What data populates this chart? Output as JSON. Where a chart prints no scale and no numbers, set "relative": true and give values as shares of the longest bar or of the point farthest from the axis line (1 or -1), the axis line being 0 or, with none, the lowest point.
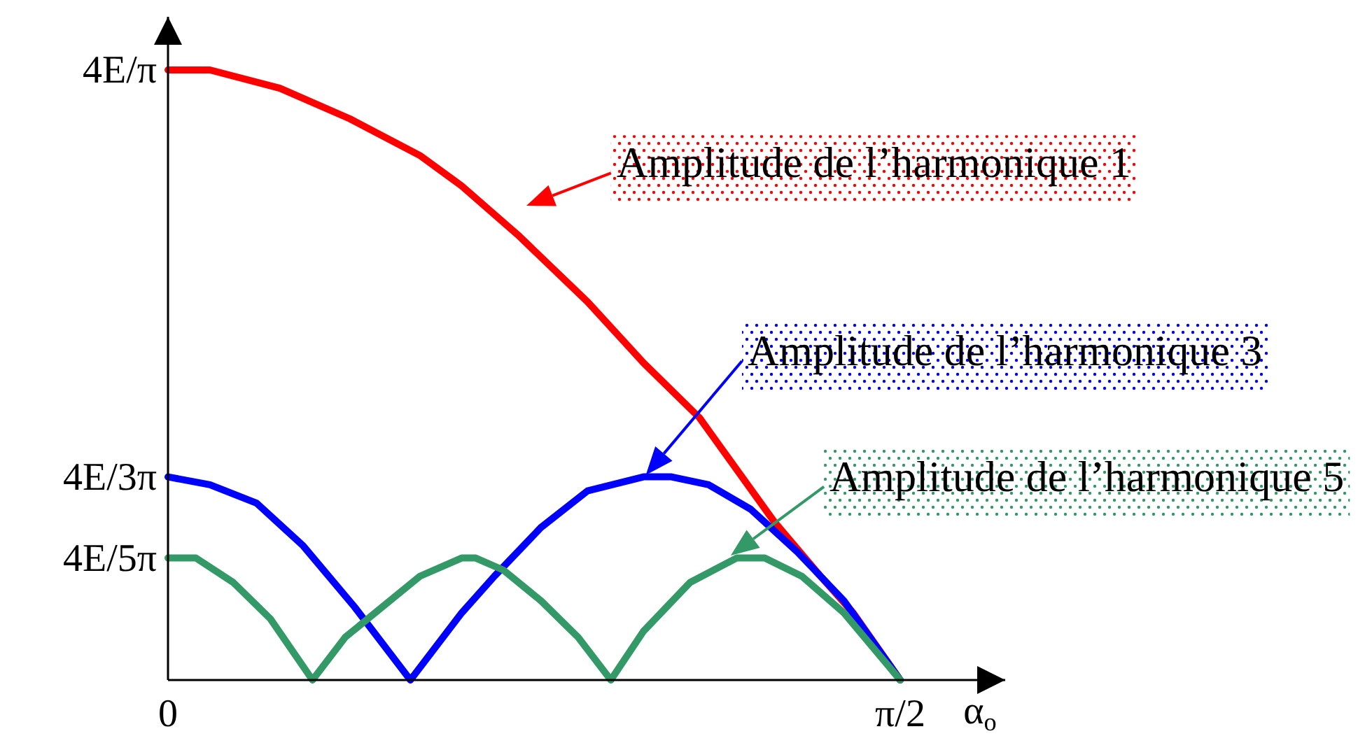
{
  "chart_data": {
    "type": "line",
    "relative": true,
    "xlabel": "α$_{o}$",
    "xlim": [
      0,
      1.796
    ],
    "xticks": [
      0,
      {
        "value": 1.5708,
        "label": "π/2"
      }
    ],
    "series": [
      {
        "color": "#ff0000",
        "x": [
          0,
          0.09,
          0.24,
          0.39,
          0.54,
          0.63,
          0.75,
          0.9,
          1.02,
          1.14,
          1.3,
          1.4,
          1.47,
          1.5708
        ],
        "values": [
          1,
          1,
          0.97,
          0.92,
          0.86,
          0.81,
          0.73,
          0.62,
          0.52,
          0.43,
          0.26,
          0.17,
          0.11,
          0
        ]
      },
      {
        "color": "#0000ff",
        "x": [
          0,
          0.09,
          0.19,
          0.29,
          0.4,
          0.52,
          0.63,
          0.7,
          0.8,
          0.9,
          1.02,
          1.08,
          1.16,
          1.25,
          1.35,
          1.45,
          1.5708
        ],
        "values": [
          0.333,
          0.32,
          0.29,
          0.22,
          0.12,
          0,
          0.11,
          0.17,
          0.25,
          0.31,
          0.333,
          0.333,
          0.32,
          0.28,
          0.21,
          0.13,
          0
        ]
      },
      {
        "color": "#339966",
        "x": [
          0,
          0.06,
          0.14,
          0.22,
          0.31,
          0.38,
          0.46,
          0.54,
          0.63,
          0.66,
          0.72,
          0.8,
          0.88,
          0.95,
          1.02,
          1.12,
          1.22,
          1.28,
          1.36,
          1.45,
          1.5708
        ],
        "values": [
          0.2,
          0.2,
          0.16,
          0.1,
          0,
          0.07,
          0.12,
          0.17,
          0.2,
          0.2,
          0.18,
          0.13,
          0.07,
          0,
          0.08,
          0.16,
          0.2,
          0.2,
          0.17,
          0.11,
          0
        ]
      }
    ],
    "annotations": [
      {
        "text": "4E/π",
        "x": 0,
        "y": 1
      },
      {
        "text": "Amplitude de l’harmonique 1",
        "x": 0.71,
        "y": 0.76
      },
      "Amplitude de l’harmonique 3",
      {
        "text": "4E/3π",
        "x": 0,
        "y": 0.333
      },
      {
        "text": "Amplitude de l’harmonique 5",
        "x": 1.2,
        "y": 0.2
      },
      {
        "text": "4E/5π",
        "x": 0,
        "y": 0.2
      }
    ]
  }
}
